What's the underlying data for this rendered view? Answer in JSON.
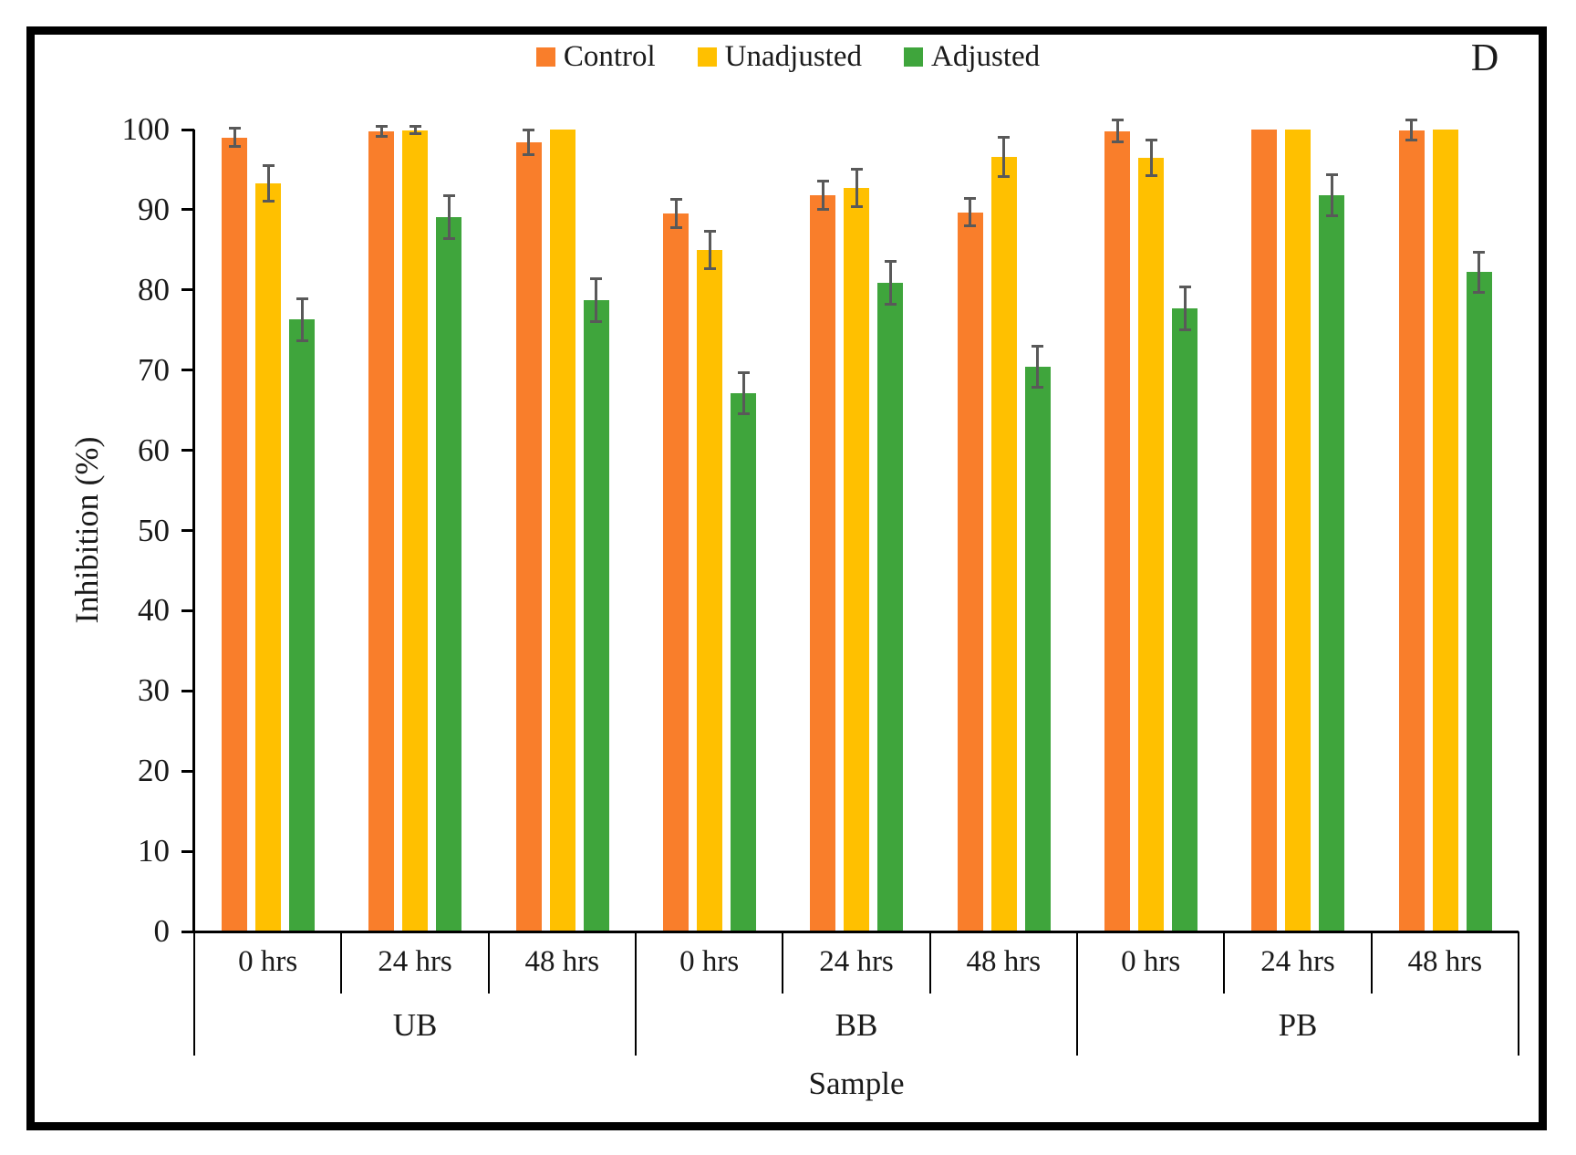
{
  "panel_label": "D",
  "chart_data": {
    "type": "bar",
    "title": "",
    "xlabel": "Sample",
    "ylabel": "Inhibition (%)",
    "ylim": [
      0,
      100
    ],
    "yticks": [
      0,
      10,
      20,
      30,
      40,
      50,
      60,
      70,
      80,
      90,
      100
    ],
    "grid": false,
    "legend_position": "top-center",
    "groups": [
      "UB",
      "BB",
      "PB"
    ],
    "timepoints": [
      "0 hrs",
      "24 hrs",
      "48 hrs"
    ],
    "categories": [
      "UB 0 hrs",
      "UB 24 hrs",
      "UB 48 hrs",
      "BB 0 hrs",
      "BB 24 hrs",
      "BB 48 hrs",
      "PB 0 hrs",
      "PB 24 hrs",
      "PB 48 hrs"
    ],
    "series": [
      {
        "name": "Control",
        "color": "#F97E2B",
        "values": [
          99.0,
          99.8,
          98.4,
          89.5,
          91.8,
          89.7,
          99.8,
          100,
          99.9
        ],
        "errors": [
          1.2,
          0.7,
          1.6,
          1.8,
          1.8,
          1.8,
          1.4,
          0,
          1.3
        ]
      },
      {
        "name": "Unadjusted",
        "color": "#FFC000",
        "values": [
          93.3,
          99.9,
          100,
          85.0,
          92.7,
          96.6,
          96.5,
          100,
          100
        ],
        "errors": [
          2.3,
          0.5,
          0,
          2.4,
          2.4,
          2.5,
          2.3,
          0,
          0
        ]
      },
      {
        "name": "Adjusted",
        "color": "#3FA53C",
        "values": [
          76.3,
          89.1,
          78.7,
          67.1,
          80.9,
          70.4,
          77.7,
          91.8,
          82.2
        ],
        "errors": [
          2.7,
          2.7,
          2.7,
          2.6,
          2.7,
          2.6,
          2.7,
          2.6,
          2.6
        ]
      }
    ],
    "error_bar_color": "#595959",
    "axis_color": "#000000"
  }
}
